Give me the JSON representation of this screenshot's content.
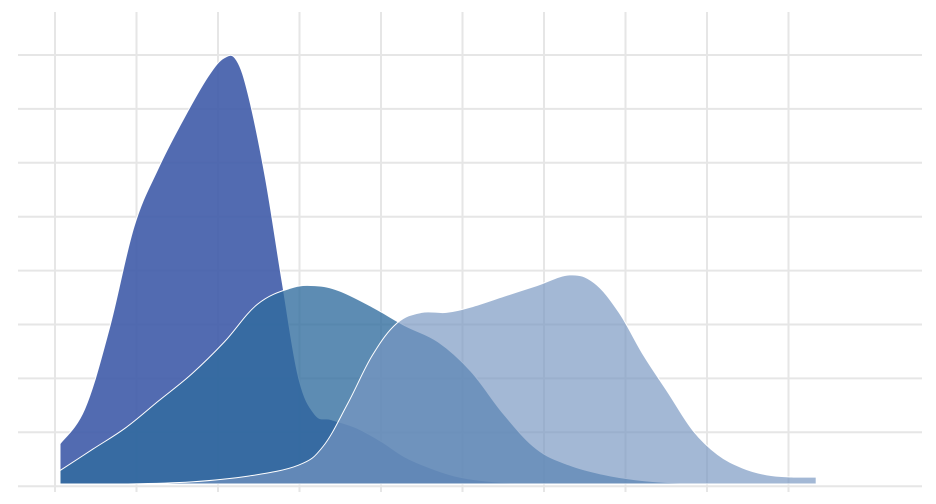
{
  "chart_data": {
    "type": "area",
    "title": "",
    "xlabel": "",
    "ylabel": "",
    "grid": true,
    "legend": "none",
    "xlim": [
      0,
      10
    ],
    "ylim": [
      0,
      8
    ],
    "series": [
      {
        "color": "#3f5ba9",
        "opacity": 0.9,
        "x": [
          0,
          0.3,
          0.6,
          0.9,
          1.2,
          1.5,
          1.8,
          2.0,
          2.15,
          2.3,
          2.5,
          2.7,
          2.9,
          3.1,
          3.3,
          3.6,
          3.9,
          4.2,
          4.5,
          4.8,
          5.1,
          5.5,
          6.0
        ],
        "values": [
          0.75,
          1.4,
          2.9,
          4.8,
          5.9,
          6.8,
          7.6,
          7.95,
          7.9,
          7.2,
          5.7,
          3.8,
          2.0,
          1.3,
          1.2,
          1.05,
          0.8,
          0.5,
          0.3,
          0.15,
          0.07,
          0.02,
          0
        ]
      },
      {
        "color": "#2f6c9e",
        "opacity": 0.78,
        "x": [
          0,
          0.4,
          0.8,
          1.2,
          1.6,
          2.0,
          2.4,
          2.8,
          3.1,
          3.4,
          3.8,
          4.2,
          4.6,
          5.0,
          5.4,
          5.8,
          6.2,
          6.6,
          7.0,
          7.5,
          8.0
        ],
        "values": [
          0.25,
          0.65,
          1.05,
          1.55,
          2.05,
          2.65,
          3.35,
          3.65,
          3.7,
          3.6,
          3.3,
          2.95,
          2.65,
          2.1,
          1.3,
          0.65,
          0.35,
          0.18,
          0.08,
          0.02,
          0
        ]
      },
      {
        "color": "#7897c1",
        "opacity": 0.68,
        "x": [
          0,
          0.8,
          1.6,
          2.3,
          2.9,
          3.2,
          3.5,
          3.8,
          4.1,
          4.4,
          4.7,
          5.0,
          5.4,
          5.8,
          6.2,
          6.5,
          6.8,
          7.1,
          7.4,
          7.7,
          8.0,
          8.3,
          8.6,
          8.9,
          9.2
        ],
        "values": [
          0,
          0,
          0.04,
          0.15,
          0.35,
          0.7,
          1.5,
          2.4,
          3.0,
          3.2,
          3.2,
          3.3,
          3.5,
          3.7,
          3.9,
          3.75,
          3.2,
          2.4,
          1.7,
          1.0,
          0.55,
          0.3,
          0.17,
          0.13,
          0.13
        ]
      }
    ]
  }
}
